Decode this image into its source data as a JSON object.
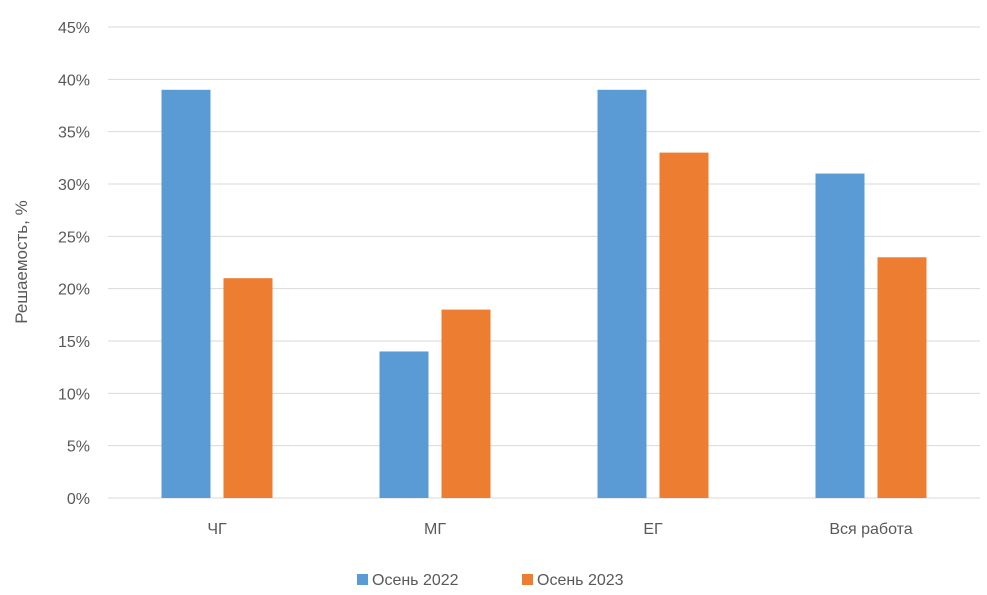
{
  "chart_data": {
    "type": "bar",
    "title": "",
    "xlabel": "",
    "ylabel": "Решаемость, %",
    "ylim": [
      0,
      45
    ],
    "y_tick_step": 5,
    "y_tick_labels": [
      "0%",
      "5%",
      "10%",
      "15%",
      "20%",
      "25%",
      "30%",
      "35%",
      "40%",
      "45%"
    ],
    "categories": [
      "ЧГ",
      "МГ",
      "ЕГ",
      "Вся работа"
    ],
    "series": [
      {
        "name": "Осень 2022",
        "values": [
          39,
          14,
          39,
          31
        ],
        "color": "#5B9BD5"
      },
      {
        "name": "Осень 2023",
        "values": [
          21,
          18,
          33,
          23
        ],
        "color": "#ED7D31"
      }
    ],
    "grid": true,
    "gridline_color": "#D9D9D9",
    "legend_position": "bottom-center"
  }
}
